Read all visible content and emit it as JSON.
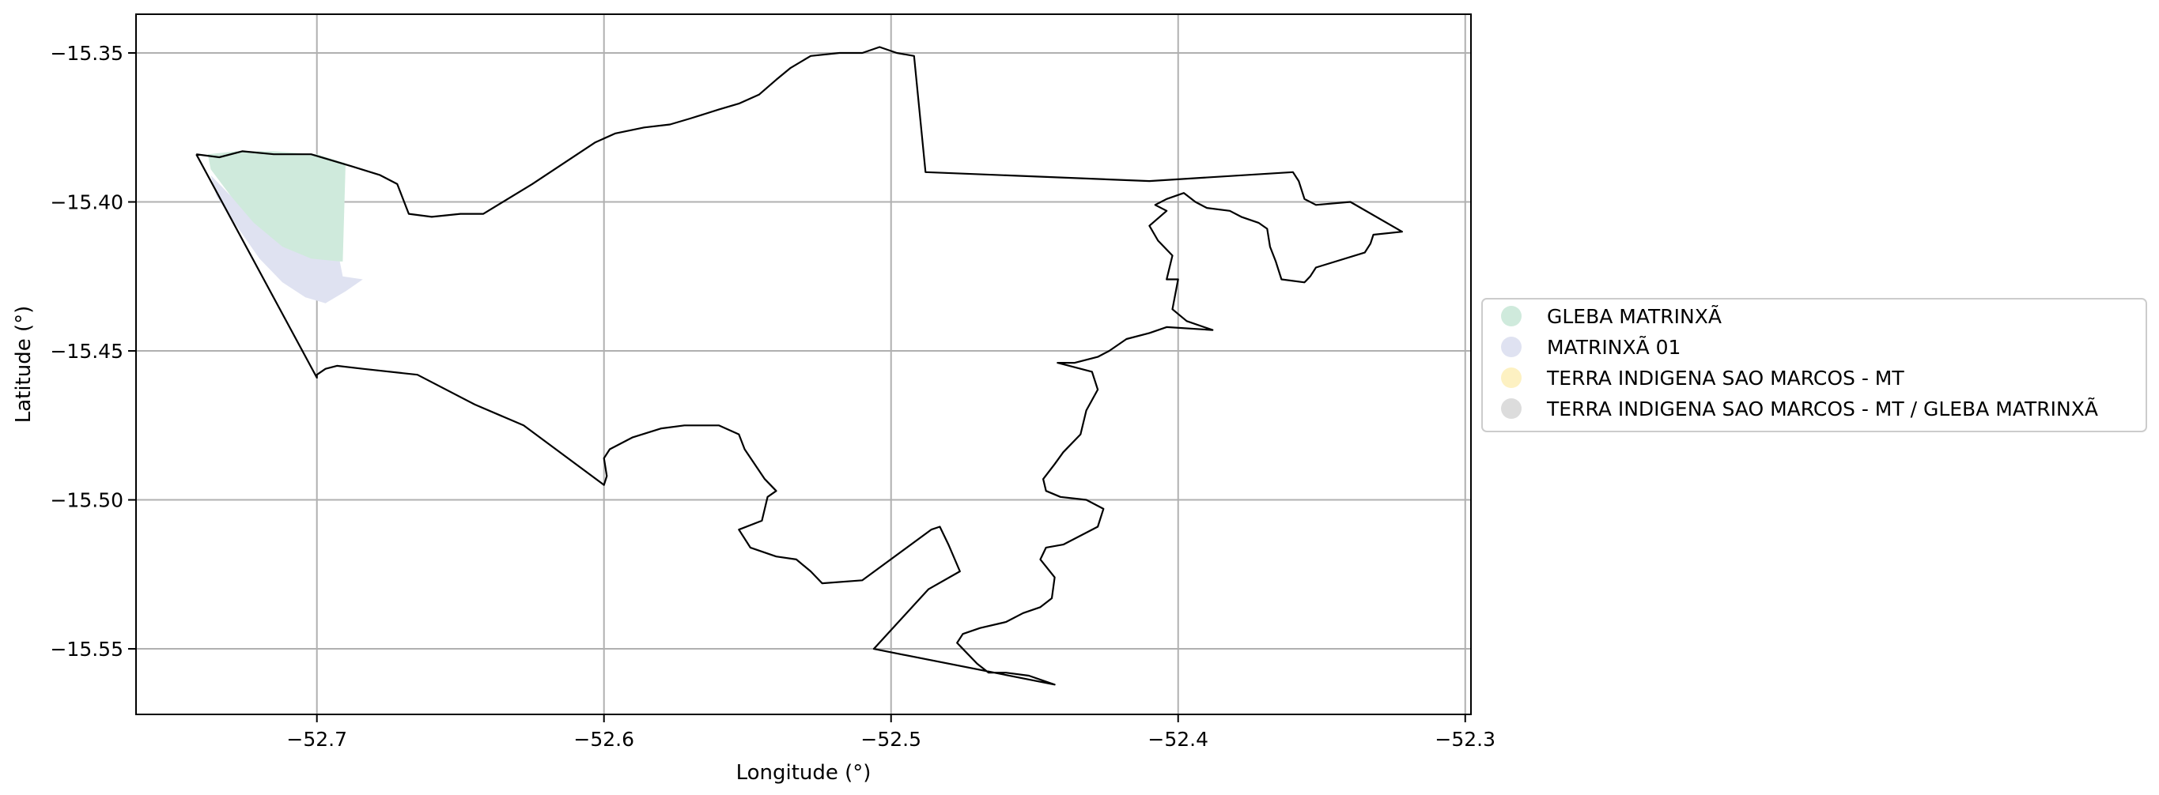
{
  "chart_data": {
    "type": "map",
    "title": "",
    "xlabel": "Longitude (°)",
    "ylabel": "Latitude (°)",
    "xlim": [
      -52.763,
      -52.298
    ],
    "ylim": [
      -15.572,
      -15.337
    ],
    "grid": true,
    "x_ticks": [
      -52.7,
      -52.6,
      -52.5,
      -52.4,
      -52.3
    ],
    "x_tick_labels": [
      "−52.7",
      "−52.6",
      "−52.5",
      "−52.4",
      "−52.3"
    ],
    "y_ticks": [
      -15.35,
      -15.4,
      -15.45,
      -15.5,
      -15.55
    ],
    "y_tick_labels": [
      "−15.35",
      "−15.40",
      "−15.45",
      "−15.50",
      "−15.55"
    ],
    "legend_position": "center-right, outside plot",
    "legend": [
      {
        "label": "GLEBA MATRINXÃ",
        "color": "#cfeadc"
      },
      {
        "label": "MATRINXÃ 01",
        "color": "#dfe2f1"
      },
      {
        "label": "TERRA INDIGENA SAO MARCOS - MT",
        "color": "#fdf1c2"
      },
      {
        "label": "TERRA INDIGENA SAO MARCOS - MT / GLEBA MATRINXÃ",
        "color": "#dcdcdc"
      }
    ],
    "boundary_color": "#000000",
    "fills": [
      {
        "label": "GLEBA MATRINXÃ",
        "color": "#cfeadc",
        "coords": [
          [
            -52.738,
            -15.384
          ],
          [
            -52.728,
            -15.383
          ],
          [
            -52.715,
            -15.383
          ],
          [
            -52.7,
            -15.384
          ],
          [
            -52.69,
            -15.387
          ],
          [
            -52.691,
            -15.42
          ],
          [
            -52.7,
            -15.42
          ],
          [
            -52.712,
            -15.416
          ],
          [
            -52.722,
            -15.408
          ],
          [
            -52.73,
            -15.398
          ],
          [
            -52.737,
            -15.389
          ]
        ]
      },
      {
        "label": "MATRINXÃ 01",
        "color": "#dfe2f1",
        "coords": [
          [
            -52.737,
            -15.391
          ],
          [
            -52.73,
            -15.398
          ],
          [
            -52.722,
            -15.407
          ],
          [
            -52.712,
            -15.415
          ],
          [
            -52.702,
            -15.419
          ],
          [
            -52.692,
            -15.42
          ],
          [
            -52.691,
            -15.425
          ],
          [
            -52.684,
            -15.426
          ],
          [
            -52.69,
            -15.43
          ],
          [
            -52.697,
            -15.434
          ],
          [
            -52.704,
            -15.432
          ],
          [
            -52.712,
            -15.427
          ],
          [
            -52.72,
            -15.419
          ],
          [
            -52.728,
            -15.408
          ],
          [
            -52.735,
            -15.398
          ]
        ]
      }
    ],
    "boundary": [
      [
        -52.742,
        -15.384
      ],
      [
        -52.734,
        -15.385
      ],
      [
        -52.726,
        -15.383
      ],
      [
        -52.715,
        -15.384
      ],
      [
        -52.702,
        -15.384
      ],
      [
        -52.688,
        -15.388
      ],
      [
        -52.678,
        -15.391
      ],
      [
        -52.672,
        -15.394
      ],
      [
        -52.668,
        -15.404
      ],
      [
        -52.66,
        -15.405
      ],
      [
        -52.65,
        -15.404
      ],
      [
        -52.642,
        -15.404
      ],
      [
        -52.625,
        -15.394
      ],
      [
        -52.603,
        -15.38
      ],
      [
        -52.596,
        -15.377
      ],
      [
        -52.586,
        -15.375
      ],
      [
        -52.577,
        -15.374
      ],
      [
        -52.57,
        -15.372
      ],
      [
        -52.56,
        -15.369
      ],
      [
        -52.553,
        -15.367
      ],
      [
        -52.546,
        -15.364
      ],
      [
        -52.54,
        -15.359
      ],
      [
        -52.535,
        -15.355
      ],
      [
        -52.528,
        -15.351
      ],
      [
        -52.518,
        -15.35
      ],
      [
        -52.51,
        -15.35
      ],
      [
        -52.504,
        -15.348
      ],
      [
        -52.498,
        -15.35
      ],
      [
        -52.492,
        -15.351
      ],
      [
        -52.488,
        -15.39
      ],
      [
        -52.41,
        -15.393
      ],
      [
        -52.36,
        -15.39
      ],
      [
        -52.358,
        -15.393
      ],
      [
        -52.356,
        -15.399
      ],
      [
        -52.352,
        -15.401
      ],
      [
        -52.34,
        -15.4
      ],
      [
        -52.322,
        -15.41
      ],
      [
        -52.332,
        -15.411
      ],
      [
        -52.333,
        -15.414
      ],
      [
        -52.335,
        -15.417
      ],
      [
        -52.352,
        -15.422
      ],
      [
        -52.354,
        -15.425
      ],
      [
        -52.356,
        -15.427
      ],
      [
        -52.364,
        -15.426
      ],
      [
        -52.366,
        -15.42
      ],
      [
        -52.368,
        -15.415
      ],
      [
        -52.369,
        -15.409
      ],
      [
        -52.372,
        -15.407
      ],
      [
        -52.378,
        -15.405
      ],
      [
        -52.382,
        -15.403
      ],
      [
        -52.39,
        -15.402
      ],
      [
        -52.394,
        -15.4
      ],
      [
        -52.398,
        -15.397
      ],
      [
        -52.404,
        -15.399
      ],
      [
        -52.408,
        -15.401
      ],
      [
        -52.404,
        -15.403
      ],
      [
        -52.41,
        -15.408
      ],
      [
        -52.407,
        -15.413
      ],
      [
        -52.402,
        -15.418
      ],
      [
        -52.404,
        -15.426
      ],
      [
        -52.4,
        -15.426
      ],
      [
        -52.402,
        -15.436
      ],
      [
        -52.397,
        -15.44
      ],
      [
        -52.388,
        -15.443
      ],
      [
        -52.404,
        -15.442
      ],
      [
        -52.41,
        -15.444
      ],
      [
        -52.418,
        -15.446
      ],
      [
        -52.424,
        -15.45
      ],
      [
        -52.428,
        -15.452
      ],
      [
        -52.436,
        -15.454
      ],
      [
        -52.442,
        -15.454
      ],
      [
        -52.43,
        -15.457
      ],
      [
        -52.428,
        -15.463
      ],
      [
        -52.432,
        -15.47
      ],
      [
        -52.434,
        -15.478
      ],
      [
        -52.44,
        -15.484
      ],
      [
        -52.443,
        -15.488
      ],
      [
        -52.447,
        -15.493
      ],
      [
        -52.446,
        -15.497
      ],
      [
        -52.441,
        -15.499
      ],
      [
        -52.432,
        -15.5
      ],
      [
        -52.426,
        -15.503
      ],
      [
        -52.428,
        -15.509
      ],
      [
        -52.44,
        -15.515
      ],
      [
        -52.446,
        -15.516
      ],
      [
        -52.448,
        -15.52
      ],
      [
        -52.443,
        -15.526
      ],
      [
        -52.444,
        -15.533
      ],
      [
        -52.448,
        -15.536
      ],
      [
        -52.454,
        -15.538
      ],
      [
        -52.46,
        -15.541
      ],
      [
        -52.469,
        -15.543
      ],
      [
        -52.475,
        -15.545
      ],
      [
        -52.477,
        -15.548
      ],
      [
        -52.474,
        -15.551
      ],
      [
        -52.47,
        -15.555
      ],
      [
        -52.466,
        -15.558
      ],
      [
        -52.46,
        -15.558
      ],
      [
        -52.452,
        -15.559
      ],
      [
        -52.443,
        -15.562
      ],
      [
        -52.506,
        -15.55
      ],
      [
        -52.487,
        -15.53
      ],
      [
        -52.476,
        -15.524
      ],
      [
        -52.48,
        -15.515
      ],
      [
        -52.483,
        -15.509
      ],
      [
        -52.486,
        -15.51
      ],
      [
        -52.51,
        -15.527
      ],
      [
        -52.524,
        -15.528
      ],
      [
        -52.528,
        -15.524
      ],
      [
        -52.533,
        -15.52
      ],
      [
        -52.54,
        -15.519
      ],
      [
        -52.549,
        -15.516
      ],
      [
        -52.553,
        -15.51
      ],
      [
        -52.545,
        -15.507
      ],
      [
        -52.543,
        -15.499
      ],
      [
        -52.54,
        -15.497
      ],
      [
        -52.544,
        -15.493
      ],
      [
        -52.551,
        -15.483
      ],
      [
        -52.553,
        -15.478
      ],
      [
        -52.56,
        -15.475
      ],
      [
        -52.572,
        -15.475
      ],
      [
        -52.58,
        -15.476
      ],
      [
        -52.59,
        -15.479
      ],
      [
        -52.598,
        -15.483
      ],
      [
        -52.6,
        -15.486
      ],
      [
        -52.599,
        -15.492
      ],
      [
        -52.6,
        -15.495
      ],
      [
        -52.628,
        -15.475
      ],
      [
        -52.645,
        -15.468
      ],
      [
        -52.665,
        -15.458
      ],
      [
        -52.684,
        -15.456
      ],
      [
        -52.693,
        -15.455
      ],
      [
        -52.697,
        -15.456
      ],
      [
        -52.7,
        -15.458
      ],
      [
        -52.7,
        -15.459
      ],
      [
        -52.742,
        -15.384
      ]
    ]
  }
}
